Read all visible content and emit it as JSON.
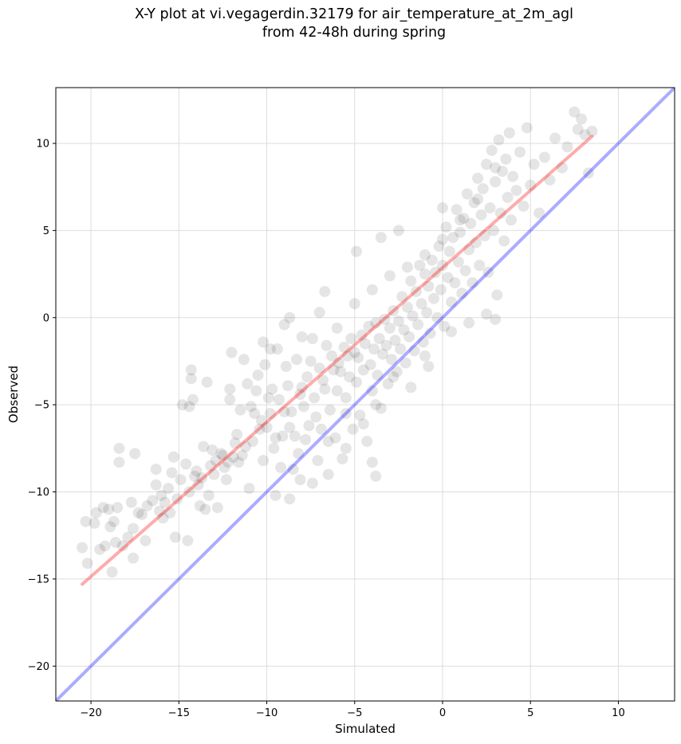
{
  "chart_data": {
    "type": "scatter",
    "title_line1": "X-Y plot at vi.vegagerdin.32179 for air_temperature_at_2m_agl",
    "title_line2": "from 42-48h during spring",
    "xlabel": "Simulated",
    "ylabel": "Observed",
    "xlim": [
      -22,
      13.2
    ],
    "ylim": [
      -22,
      13.2
    ],
    "x_ticks": [
      -20,
      -15,
      -10,
      -5,
      0,
      5,
      10
    ],
    "x_tick_labels": [
      "−20",
      "−15",
      "−10",
      "−5",
      "0",
      "5",
      "10"
    ],
    "y_ticks": [
      -20,
      -15,
      -10,
      -5,
      0,
      5,
      10
    ],
    "y_tick_labels": [
      "−20",
      "−15",
      "−10",
      "−5",
      "0",
      "5",
      "10"
    ],
    "grid": true,
    "point_color": "#000000",
    "point_opacity": 0.1,
    "identity_line": {
      "color": "#0000ff",
      "opacity": 0.33,
      "from": [
        -22,
        -22
      ],
      "to": [
        13.2,
        13.2
      ]
    },
    "fit_line": {
      "color": "#ff0000",
      "opacity": 0.33,
      "from": [
        -20.5,
        -15.3
      ],
      "to": [
        8.5,
        10.4
      ]
    },
    "points": [
      [
        -20.5,
        -13.2
      ],
      [
        -20.3,
        -11.7
      ],
      [
        -20.2,
        -14.1
      ],
      [
        -19.8,
        -11.8
      ],
      [
        -19.7,
        -11.2
      ],
      [
        -19.5,
        -13.3
      ],
      [
        -19.3,
        -10.9
      ],
      [
        -19.2,
        -13.1
      ],
      [
        -19.0,
        -11.0
      ],
      [
        -18.9,
        -12.0
      ],
      [
        -18.8,
        -14.6
      ],
      [
        -18.7,
        -11.7
      ],
      [
        -18.6,
        -12.9
      ],
      [
        -18.5,
        -10.9
      ],
      [
        -18.4,
        -8.3
      ],
      [
        -18.4,
        -7.5
      ],
      [
        -18.2,
        -13.1
      ],
      [
        -17.9,
        -12.6
      ],
      [
        -17.7,
        -10.6
      ],
      [
        -17.6,
        -13.8
      ],
      [
        -17.6,
        -12.1
      ],
      [
        -17.5,
        -7.8
      ],
      [
        -17.3,
        -11.2
      ],
      [
        -17.1,
        -11.3
      ],
      [
        -16.9,
        -12.8
      ],
      [
        -16.8,
        -10.8
      ],
      [
        -16.5,
        -10.5
      ],
      [
        -16.3,
        -9.6
      ],
      [
        -16.3,
        -8.7
      ],
      [
        -16.1,
        -11.1
      ],
      [
        -16.0,
        -10.2
      ],
      [
        -15.9,
        -11.5
      ],
      [
        -15.8,
        -10.6
      ],
      [
        -15.6,
        -9.8
      ],
      [
        -15.5,
        -11.2
      ],
      [
        -15.4,
        -8.9
      ],
      [
        -15.3,
        -8.0
      ],
      [
        -15.2,
        -12.6
      ],
      [
        -15.1,
        -10.4
      ],
      [
        -14.9,
        -9.3
      ],
      [
        -14.8,
        -5.0
      ],
      [
        -14.6,
        -8.4
      ],
      [
        -14.5,
        -12.8
      ],
      [
        -14.4,
        -10.0
      ],
      [
        -14.4,
        -5.1
      ],
      [
        -14.3,
        -3.0
      ],
      [
        -14.3,
        -3.5
      ],
      [
        -14.2,
        -4.7
      ],
      [
        -14.1,
        -9.1
      ],
      [
        -14.0,
        -8.8
      ],
      [
        -13.9,
        -9.6
      ],
      [
        -13.8,
        -10.8
      ],
      [
        -13.7,
        -9.2
      ],
      [
        -13.6,
        -7.4
      ],
      [
        -13.5,
        -11.0
      ],
      [
        -13.3,
        -10.2
      ],
      [
        -13.2,
        -8.5
      ],
      [
        -13.1,
        -7.6
      ],
      [
        -13.0,
        -9.0
      ],
      [
        -12.9,
        -8.2
      ],
      [
        -12.8,
        -10.9
      ],
      [
        -12.6,
        -7.8
      ],
      [
        -12.5,
        -7.9
      ],
      [
        -12.4,
        -8.6
      ],
      [
        -12.3,
        -9.3
      ],
      [
        -12.2,
        -8.3
      ],
      [
        -12.1,
        -4.1
      ],
      [
        -12.1,
        -4.7
      ],
      [
        -12.0,
        -2.0
      ],
      [
        -11.9,
        -8.0
      ],
      [
        -11.8,
        -7.2
      ],
      [
        -11.7,
        -6.7
      ],
      [
        -11.6,
        -8.3
      ],
      [
        -11.4,
        -7.9
      ],
      [
        -11.3,
        -2.4
      ],
      [
        -11.2,
        -7.4
      ],
      [
        -11.1,
        -3.8
      ],
      [
        -11.0,
        -9.8
      ],
      [
        -10.9,
        -5.1
      ],
      [
        -10.8,
        -7.1
      ],
      [
        -10.7,
        -5.5
      ],
      [
        -10.6,
        -4.2
      ],
      [
        -10.5,
        -3.3
      ],
      [
        -10.4,
        -6.4
      ],
      [
        -10.3,
        -5.9
      ],
      [
        -10.2,
        -8.2
      ],
      [
        -10.1,
        -2.7
      ],
      [
        -10.0,
        -6.3
      ],
      [
        -9.9,
        -4.6
      ],
      [
        -9.8,
        -1.8
      ],
      [
        -9.8,
        -5.5
      ],
      [
        -9.7,
        -4.1
      ],
      [
        -9.6,
        -7.5
      ],
      [
        -9.5,
        -6.9
      ],
      [
        -9.4,
        -1.8
      ],
      [
        -9.3,
        -4.7
      ],
      [
        -9.2,
        -8.6
      ],
      [
        -9.1,
        -6.8
      ],
      [
        -9.0,
        -5.4
      ],
      [
        -8.9,
        -2.8
      ],
      [
        -8.8,
        -3.9
      ],
      [
        -8.7,
        -6.3
      ],
      [
        -8.6,
        -5.4
      ],
      [
        -8.5,
        -8.7
      ],
      [
        -8.4,
        -6.8
      ],
      [
        -8.3,
        -2.4
      ],
      [
        -8.2,
        -7.8
      ],
      [
        -8.1,
        -4.4
      ],
      [
        -8.0,
        -4.0
      ],
      [
        -7.9,
        -5.1
      ],
      [
        -7.8,
        -7.0
      ],
      [
        -7.7,
        -3.4
      ],
      [
        -7.6,
        -6.2
      ],
      [
        -7.5,
        -2.5
      ],
      [
        -7.4,
        -1.2
      ],
      [
        -7.3,
        -4.6
      ],
      [
        -7.2,
        -5.7
      ],
      [
        -7.1,
        -8.2
      ],
      [
        -7.0,
        -2.9
      ],
      [
        -6.9,
        -6.4
      ],
      [
        -6.8,
        -3.6
      ],
      [
        -6.7,
        -4.1
      ],
      [
        -6.6,
        -1.6
      ],
      [
        -6.5,
        -7.1
      ],
      [
        -6.4,
        -5.3
      ],
      [
        -6.3,
        -2.2
      ],
      [
        -6.2,
        -3.0
      ],
      [
        -6.1,
        -6.9
      ],
      [
        -6.0,
        -4.2
      ],
      [
        -5.9,
        -2.6
      ],
      [
        -5.8,
        -3.1
      ],
      [
        -5.7,
        -8.1
      ],
      [
        -5.6,
        -1.7
      ],
      [
        -5.5,
        -4.6
      ],
      [
        -5.4,
        -2.2
      ],
      [
        -5.3,
        -3.4
      ],
      [
        -5.2,
        -1.2
      ],
      [
        -5.1,
        -6.4
      ],
      [
        -5.0,
        -2.0
      ],
      [
        -4.9,
        -3.7
      ],
      [
        -4.8,
        -2.3
      ],
      [
        -4.7,
        -5.6
      ],
      [
        -4.6,
        -1.0
      ],
      [
        -4.5,
        -3.0
      ],
      [
        -4.4,
        -1.5
      ],
      [
        -4.3,
        -7.1
      ],
      [
        -4.2,
        -0.5
      ],
      [
        -4.1,
        -2.7
      ],
      [
        -4.0,
        -4.2
      ],
      [
        -3.9,
        -1.8
      ],
      [
        -3.8,
        -0.3
      ],
      [
        -3.7,
        -3.3
      ],
      [
        -3.6,
        -1.2
      ],
      [
        -3.5,
        -5.2
      ],
      [
        -3.4,
        -2.1
      ],
      [
        -3.3,
        -0.1
      ],
      [
        -3.2,
        -1.6
      ],
      [
        -3.1,
        -3.8
      ],
      [
        -3.0,
        -0.6
      ],
      [
        -2.9,
        -2.4
      ],
      [
        -2.8,
        0.4
      ],
      [
        -2.7,
        -1.3
      ],
      [
        -2.6,
        -3.1
      ],
      [
        -2.5,
        -0.2
      ],
      [
        -2.4,
        -1.8
      ],
      [
        -2.3,
        1.2
      ],
      [
        -2.2,
        -0.7
      ],
      [
        -2.1,
        -2.6
      ],
      [
        -2.0,
        0.6
      ],
      [
        -1.9,
        -1.1
      ],
      [
        -1.8,
        2.1
      ],
      [
        -1.7,
        0.1
      ],
      [
        -1.6,
        -1.9
      ],
      [
        -1.5,
        1.5
      ],
      [
        -1.4,
        -0.4
      ],
      [
        -1.3,
        3.0
      ],
      [
        -1.2,
        0.8
      ],
      [
        -1.1,
        -1.4
      ],
      [
        -1.0,
        2.5
      ],
      [
        -0.9,
        0.3
      ],
      [
        -0.8,
        1.8
      ],
      [
        -0.7,
        -0.9
      ],
      [
        -0.6,
        3.3
      ],
      [
        -0.5,
        1.1
      ],
      [
        -0.4,
        2.6
      ],
      [
        -0.3,
        0.0
      ],
      [
        -0.2,
        4.1
      ],
      [
        -0.1,
        1.6
      ],
      [
        0.0,
        3.0
      ],
      [
        0.1,
        -0.5
      ],
      [
        0.2,
        5.2
      ],
      [
        0.3,
        2.3
      ],
      [
        0.4,
        3.8
      ],
      [
        0.5,
        0.9
      ],
      [
        0.6,
        4.6
      ],
      [
        0.7,
        2.0
      ],
      [
        0.8,
        6.2
      ],
      [
        0.9,
        3.2
      ],
      [
        1.0,
        4.9
      ],
      [
        1.1,
        1.4
      ],
      [
        1.2,
        5.7
      ],
      [
        1.3,
        2.7
      ],
      [
        1.4,
        7.1
      ],
      [
        1.5,
        3.9
      ],
      [
        1.6,
        5.4
      ],
      [
        1.7,
        2.0
      ],
      [
        1.8,
        6.6
      ],
      [
        1.9,
        4.3
      ],
      [
        2.0,
        8.0
      ],
      [
        2.1,
        3.0
      ],
      [
        2.2,
        5.9
      ],
      [
        2.3,
        7.4
      ],
      [
        2.4,
        4.7
      ],
      [
        2.5,
        8.8
      ],
      [
        2.6,
        2.6
      ],
      [
        2.7,
        6.3
      ],
      [
        2.8,
        9.6
      ],
      [
        2.9,
        5.0
      ],
      [
        3.0,
        7.8
      ],
      [
        3.1,
        1.3
      ],
      [
        3.2,
        10.2
      ],
      [
        3.3,
        6.0
      ],
      [
        3.4,
        8.4
      ],
      [
        3.5,
        4.4
      ],
      [
        3.6,
        9.1
      ],
      [
        3.7,
        6.9
      ],
      [
        3.8,
        10.6
      ],
      [
        3.9,
        5.6
      ],
      [
        4.0,
        8.1
      ],
      [
        4.2,
        7.3
      ],
      [
        4.4,
        9.5
      ],
      [
        4.6,
        6.4
      ],
      [
        4.8,
        10.9
      ],
      [
        5.0,
        7.6
      ],
      [
        5.2,
        8.8
      ],
      [
        5.5,
        6.0
      ],
      [
        5.8,
        9.2
      ],
      [
        6.1,
        7.9
      ],
      [
        6.4,
        10.3
      ],
      [
        6.8,
        8.6
      ],
      [
        7.1,
        9.8
      ],
      [
        7.5,
        11.8
      ],
      [
        7.7,
        10.8
      ],
      [
        7.9,
        11.4
      ],
      [
        8.1,
        10.5
      ],
      [
        8.3,
        8.3
      ],
      [
        8.5,
        10.7
      ],
      [
        -13.4,
        -3.7
      ],
      [
        -11.5,
        -5.3
      ],
      [
        -10.2,
        -1.4
      ],
      [
        -9.0,
        -0.4
      ],
      [
        -8.0,
        -1.1
      ],
      [
        -7.0,
        0.3
      ],
      [
        -6.0,
        -0.6
      ],
      [
        -5.0,
        0.8
      ],
      [
        -4.0,
        1.6
      ],
      [
        -3.0,
        2.4
      ],
      [
        -2.0,
        2.9
      ],
      [
        -1.0,
        3.6
      ],
      [
        0.0,
        4.5
      ],
      [
        1.0,
        5.6
      ],
      [
        2.0,
        6.8
      ],
      [
        3.0,
        8.6
      ],
      [
        -8.7,
        0.0
      ],
      [
        -6.7,
        1.5
      ],
      [
        -4.9,
        3.8
      ],
      [
        -3.5,
        4.6
      ],
      [
        -2.5,
        5.0
      ],
      [
        0.0,
        6.3
      ],
      [
        -1.0,
        -2.2
      ],
      [
        0.5,
        -0.8
      ],
      [
        1.5,
        -0.3
      ],
      [
        2.5,
        0.2
      ],
      [
        3.0,
        -0.1
      ],
      [
        -5.5,
        -5.5
      ],
      [
        -4.5,
        -6.1
      ],
      [
        -3.8,
        -5.0
      ],
      [
        -2.8,
        -3.4
      ],
      [
        -1.8,
        -4.0
      ],
      [
        -0.8,
        -2.8
      ],
      [
        -9.5,
        -10.2
      ],
      [
        -8.7,
        -10.4
      ],
      [
        -7.4,
        -9.5
      ],
      [
        -5.5,
        -7.5
      ],
      [
        -4.0,
        -8.3
      ],
      [
        -3.8,
        -9.1
      ],
      [
        -6.5,
        -9.0
      ],
      [
        -8.1,
        -9.3
      ]
    ]
  }
}
